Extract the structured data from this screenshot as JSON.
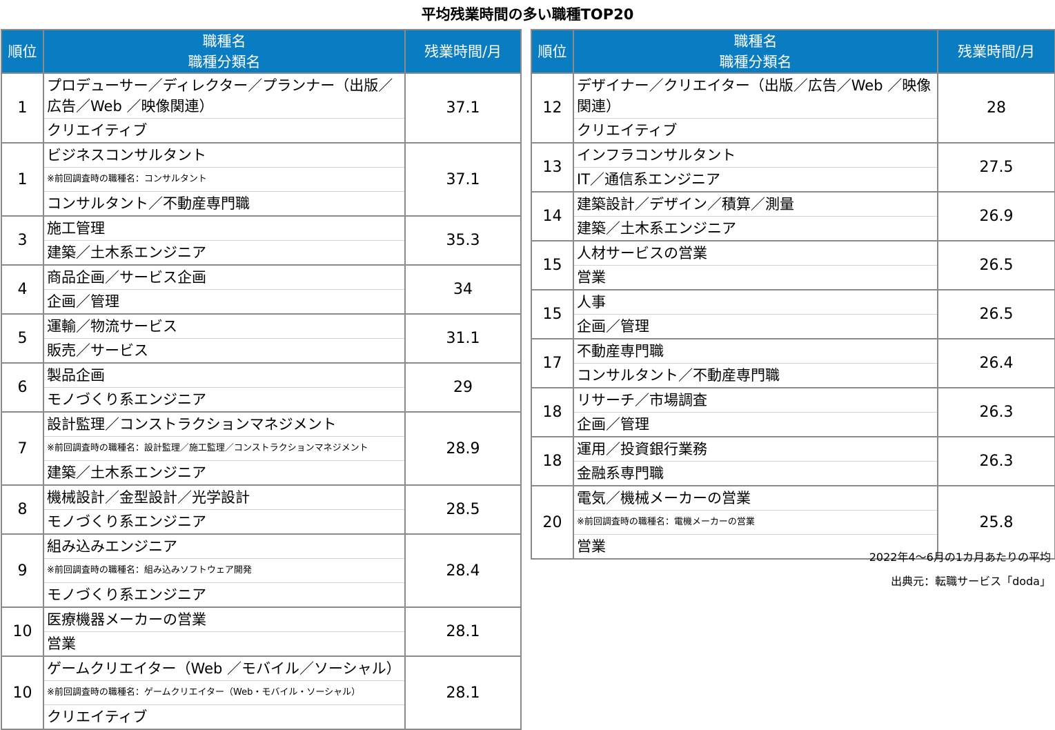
{
  "title": "平均残業時間の多い職種TOP20",
  "headers": {
    "rank": "順位",
    "name_line1": "職種名",
    "name_line2": "職種分類名",
    "hours": "残業時間/月"
  },
  "left_rows": [
    {
      "rank": "1",
      "lines": [
        {
          "text": "プロデューサー／ディレクター／プランナー（出版／広告／Web ／映像関連）",
          "kind": "wrap"
        },
        {
          "text": "クリエイティブ",
          "kind": "category"
        }
      ],
      "hours": "37.1"
    },
    {
      "rank": "1",
      "lines": [
        {
          "text": "ビジネスコンサルタント",
          "kind": "name"
        },
        {
          "text": "※前回調査時の職種名：コンサルタント",
          "kind": "note"
        },
        {
          "text": "コンサルタント／不動産専門職",
          "kind": "category"
        }
      ],
      "hours": "37.1"
    },
    {
      "rank": "3",
      "lines": [
        {
          "text": "施工管理",
          "kind": "name"
        },
        {
          "text": "建築／土木系エンジニア",
          "kind": "category"
        }
      ],
      "hours": "35.3"
    },
    {
      "rank": "4",
      "lines": [
        {
          "text": "商品企画／サービス企画",
          "kind": "name"
        },
        {
          "text": "企画／管理",
          "kind": "category"
        }
      ],
      "hours": "34"
    },
    {
      "rank": "5",
      "lines": [
        {
          "text": "運輸／物流サービス",
          "kind": "name"
        },
        {
          "text": "販売／サービス",
          "kind": "category"
        }
      ],
      "hours": "31.1"
    },
    {
      "rank": "6",
      "lines": [
        {
          "text": "製品企画",
          "kind": "name"
        },
        {
          "text": "モノづくり系エンジニア",
          "kind": "category"
        }
      ],
      "hours": "29"
    },
    {
      "rank": "7",
      "lines": [
        {
          "text": "設計監理／コンストラクションマネジメント",
          "kind": "name"
        },
        {
          "text": "※前回調査時の職種名：設計監理／施工監理／コンストラクションマネジメント",
          "kind": "note"
        },
        {
          "text": "建築／土木系エンジニア",
          "kind": "category"
        }
      ],
      "hours": "28.9"
    },
    {
      "rank": "8",
      "lines": [
        {
          "text": "機械設計／金型設計／光学設計",
          "kind": "name"
        },
        {
          "text": "モノづくり系エンジニア",
          "kind": "category"
        }
      ],
      "hours": "28.5"
    },
    {
      "rank": "9",
      "lines": [
        {
          "text": "組み込みエンジニア",
          "kind": "name"
        },
        {
          "text": "※前回調査時の職種名：組み込みソフトウェア開発",
          "kind": "note"
        },
        {
          "text": "モノづくり系エンジニア",
          "kind": "category"
        }
      ],
      "hours": "28.4"
    },
    {
      "rank": "10",
      "lines": [
        {
          "text": "医療機器メーカーの営業",
          "kind": "name"
        },
        {
          "text": "営業",
          "kind": "category"
        }
      ],
      "hours": "28.1"
    },
    {
      "rank": "10",
      "lines": [
        {
          "text": "ゲームクリエイター（Web ／モバイル／ソーシャル）",
          "kind": "name"
        },
        {
          "text": "※前回調査時の職種名：ゲームクリエイター（Web・モバイル・ソーシャル）",
          "kind": "note"
        },
        {
          "text": "クリエイティブ",
          "kind": "category"
        }
      ],
      "hours": "28.1"
    }
  ],
  "right_rows": [
    {
      "rank": "12",
      "lines": [
        {
          "text": "デザイナー／クリエイター（出版／広告／Web ／映像関連）",
          "kind": "wrap"
        },
        {
          "text": "クリエイティブ",
          "kind": "category"
        }
      ],
      "hours": "28"
    },
    {
      "rank": "13",
      "lines": [
        {
          "text": "インフラコンサルタント",
          "kind": "name"
        },
        {
          "text": "IT／通信系エンジニア",
          "kind": "category"
        }
      ],
      "hours": "27.5"
    },
    {
      "rank": "14",
      "lines": [
        {
          "text": "建築設計／デザイン／積算／測量",
          "kind": "name"
        },
        {
          "text": "建築／土木系エンジニア",
          "kind": "category"
        }
      ],
      "hours": "26.9"
    },
    {
      "rank": "15",
      "lines": [
        {
          "text": "人材サービスの営業",
          "kind": "name"
        },
        {
          "text": "営業",
          "kind": "category"
        }
      ],
      "hours": "26.5"
    },
    {
      "rank": "15",
      "lines": [
        {
          "text": "人事",
          "kind": "name"
        },
        {
          "text": "企画／管理",
          "kind": "category"
        }
      ],
      "hours": "26.5"
    },
    {
      "rank": "17",
      "lines": [
        {
          "text": "不動産専門職",
          "kind": "name"
        },
        {
          "text": "コンサルタント／不動産専門職",
          "kind": "category"
        }
      ],
      "hours": "26.4"
    },
    {
      "rank": "18",
      "lines": [
        {
          "text": "リサーチ／市場調査",
          "kind": "name"
        },
        {
          "text": "企画／管理",
          "kind": "category"
        }
      ],
      "hours": "26.3"
    },
    {
      "rank": "18",
      "lines": [
        {
          "text": "運用／投資銀行業務",
          "kind": "name"
        },
        {
          "text": "金融系専門職",
          "kind": "category"
        }
      ],
      "hours": "26.3"
    },
    {
      "rank": "20",
      "lines": [
        {
          "text": "電気／機械メーカーの営業",
          "kind": "name"
        },
        {
          "text": "※前回調査時の職種名：電機メーカーの営業",
          "kind": "note"
        },
        {
          "text": "営業",
          "kind": "category"
        }
      ],
      "hours": "25.8"
    }
  ],
  "footnotes": {
    "period": "2022年4～6月の1カ月あたりの平均",
    "source": "出典元：転職サービス「doda」"
  }
}
